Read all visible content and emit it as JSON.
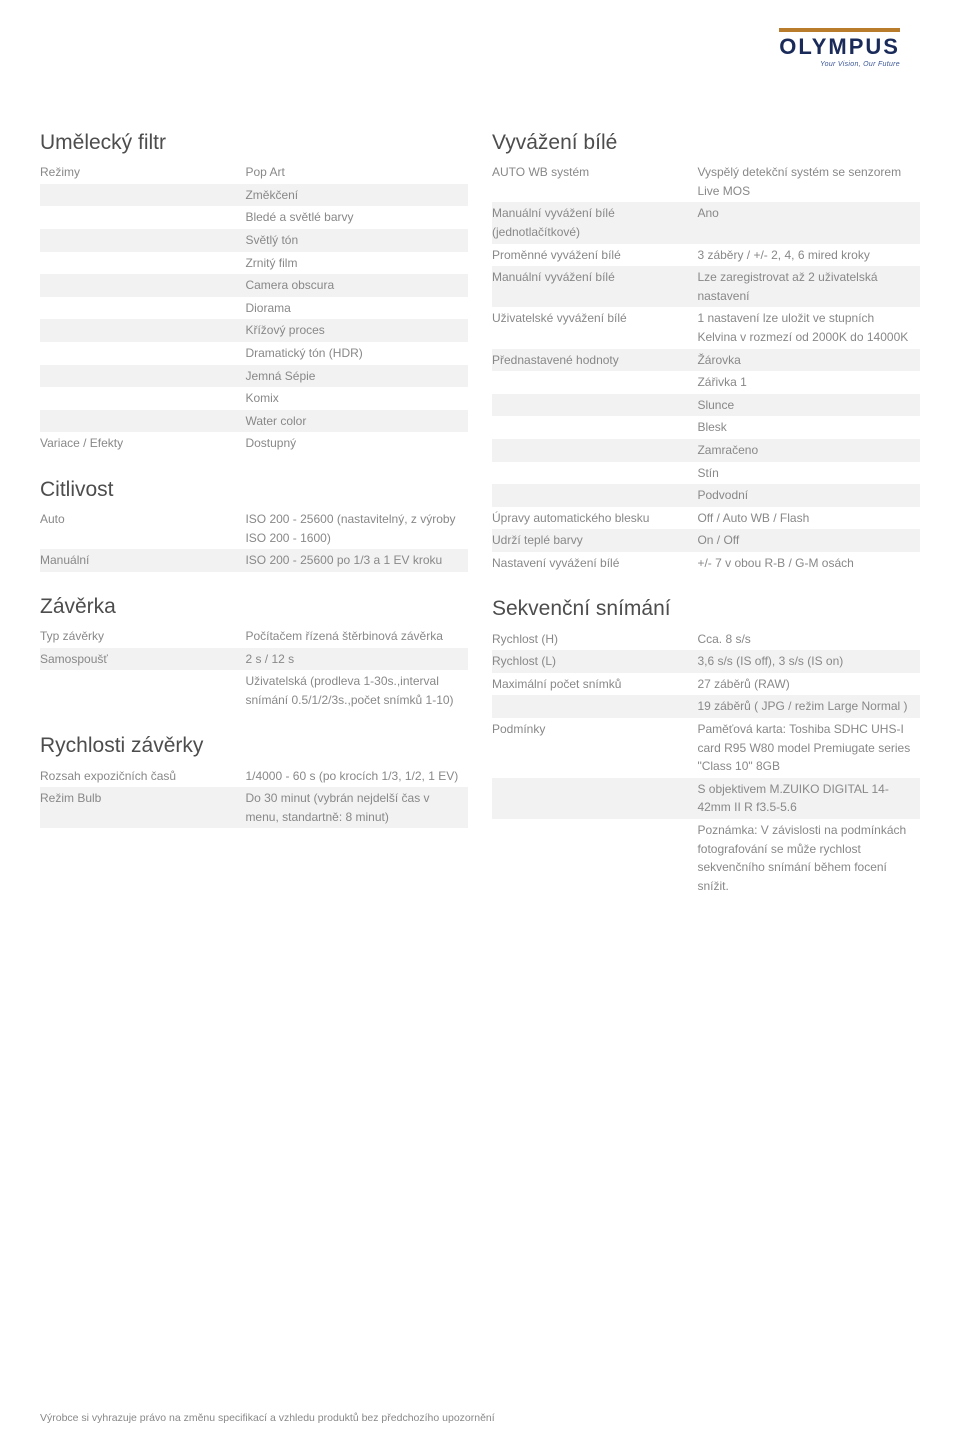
{
  "brand": {
    "name": "OLYMPUS",
    "tagline": "Your Vision, Our Future"
  },
  "colors": {
    "brand_blue": "#1a2b5a",
    "brand_gold": "#b87c2a",
    "text_gray": "#888888",
    "heading_gray": "#4d4d4d",
    "row_alt": "#f2f2f2",
    "row_white": "#ffffff"
  },
  "left_sections": [
    {
      "title": "Umělecký filtr",
      "rows": [
        [
          "Režimy",
          "Pop Art"
        ],
        [
          "",
          "Změkčení"
        ],
        [
          "",
          "Bledé a světlé barvy"
        ],
        [
          "",
          "Světlý tón"
        ],
        [
          "",
          "Zrnitý film"
        ],
        [
          "",
          "Camera obscura"
        ],
        [
          "",
          "Diorama"
        ],
        [
          "",
          "Křížový proces"
        ],
        [
          "",
          "Dramatický tón (HDR)"
        ],
        [
          "",
          "Jemná Sépie"
        ],
        [
          "",
          "Komix"
        ],
        [
          "",
          "Water color"
        ],
        [
          "Variace / Efekty",
          "Dostupný"
        ]
      ]
    },
    {
      "title": "Citlivost",
      "rows": [
        [
          "Auto",
          "ISO 200 - 25600 (nastavitelný, z výroby ISO 200 - 1600)"
        ],
        [
          "Manuální",
          "ISO 200 - 25600 po 1/3 a 1 EV kroku"
        ]
      ]
    },
    {
      "title": "Závěrka",
      "rows": [
        [
          "Typ závěrky",
          "Počítačem řízená štěrbinová závěrka"
        ],
        [
          "Samospoušť",
          "2 s / 12 s"
        ],
        [
          "",
          "Uživatelská (prodleva 1-30s.,interval snímání 0.5/1/2/3s.,počet snímků 1-10)"
        ]
      ]
    },
    {
      "title": "Rychlosti závěrky",
      "rows": [
        [
          "Rozsah expozičních časů",
          "1/4000 - 60 s (po krocích 1/3, 1/2, 1 EV)"
        ],
        [
          "Režim Bulb",
          "Do 30 minut (vybrán nejdelší čas v menu, standartně: 8 minut)"
        ]
      ]
    }
  ],
  "right_sections": [
    {
      "title": "Vyvážení bílé",
      "rows": [
        [
          "AUTO WB systém",
          "Vyspělý detekční systém se senzorem Live MOS"
        ],
        [
          "Manuální vyvážení bílé (jednotlačítkové)",
          "Ano"
        ],
        [
          "Proměnné vyvážení bílé",
          "3 záběry / +/- 2, 4, 6 mired kroky"
        ],
        [
          "Manuální vyvážení bílé",
          "Lze zaregistrovat až 2 uživatelská nastavení"
        ],
        [
          "Uživatelské vyvážení bílé",
          "1 nastavení lze uložit ve stupních Kelvina v rozmezí od 2000K do 14000K"
        ],
        [
          "Přednastavené hodnoty",
          "Žárovka"
        ],
        [
          "",
          "Zářivka 1"
        ],
        [
          "",
          "Slunce"
        ],
        [
          "",
          "Blesk"
        ],
        [
          "",
          "Zamračeno"
        ],
        [
          "",
          "Stín"
        ],
        [
          "",
          "Podvodní"
        ],
        [
          "Úpravy automatického blesku",
          "Off / Auto WB / Flash"
        ],
        [
          "Udrží teplé barvy",
          "On / Off"
        ],
        [
          "Nastavení vyvážení bílé",
          "+/- 7 v obou R-B / G-M osách"
        ]
      ]
    },
    {
      "title": "Sekvenční snímání",
      "rows": [
        [
          "Rychlost (H)",
          "Cca. 8 s/s"
        ],
        [
          "Rychlost (L)",
          "3,6 s/s (IS off), 3 s/s (IS on)"
        ],
        [
          "Maximální počet snímků",
          "27 záběrů (RAW)"
        ],
        [
          "",
          "19 záběrů ( JPG / režim Large Normal )"
        ],
        [
          "Podmínky",
          "Paměťová karta: Toshiba SDHC UHS-I card R95 W80 model Premiugate series \"Class 10\" 8GB"
        ],
        [
          "",
          "S objektivem M.ZUIKO DIGITAL 14-42mm II R f3.5-5.6"
        ],
        [
          "",
          "Poznámka: V závislosti na podmínkách fotografování se může rychlost sekvenčního snímání během focení snížit."
        ]
      ]
    }
  ],
  "footer": "Výrobce si vyhrazuje právo na změnu specifikací a vzhledu produktů bez předchozího upozornění"
}
